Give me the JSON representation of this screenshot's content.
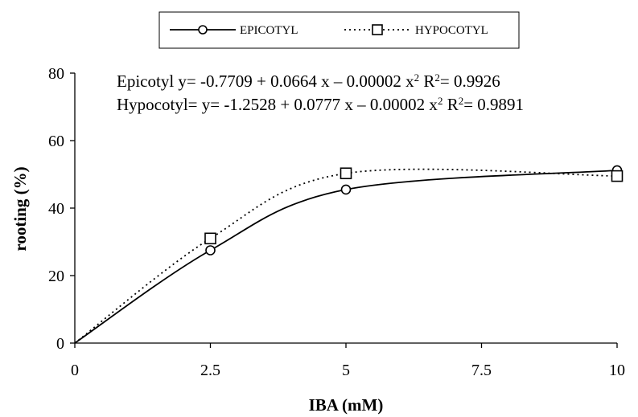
{
  "chart_data": {
    "type": "line",
    "xlabel": "IBA (mM)",
    "ylabel": "rooting (%)",
    "xlim": [
      0,
      10
    ],
    "ylim": [
      0,
      80
    ],
    "x_ticks": [
      0,
      2.5,
      5,
      7.5,
      10
    ],
    "x_tick_labels": [
      "0",
      "2.5",
      "5",
      "7.5",
      "10"
    ],
    "y_ticks": [
      0,
      20,
      40,
      60,
      80
    ],
    "y_tick_labels": [
      "0",
      "20",
      "40",
      "60",
      "80"
    ],
    "grid": false,
    "legend_position": "top-center",
    "legend_boxed": true,
    "x": [
      0,
      2.5,
      5,
      10
    ],
    "series": [
      {
        "name": "EPICOTYL",
        "values": [
          0,
          27.5,
          45.5,
          51.2
        ],
        "line_style": "solid",
        "marker": "circle",
        "color": "#000000"
      },
      {
        "name": "HYPOCOTYL",
        "values": [
          0,
          31,
          50.3,
          49.5
        ],
        "line_style": "dotted",
        "marker": "square",
        "color": "#000000"
      }
    ],
    "annotations": [
      {
        "lines": [
          {
            "pre": "Epicotyl y= -0.7709 + 0.0664 x – 0.00002 x",
            "sup1": "2",
            "mid": "  R",
            "sup2": "2",
            "post": "= 0.9926"
          },
          {
            "pre": "Hypocotyl= y= -1.2528 + 0.0777 x – 0.00002 x",
            "sup1": "2",
            "mid": " R",
            "sup2": "2",
            "post": "= 0.9891"
          }
        ]
      }
    ]
  }
}
